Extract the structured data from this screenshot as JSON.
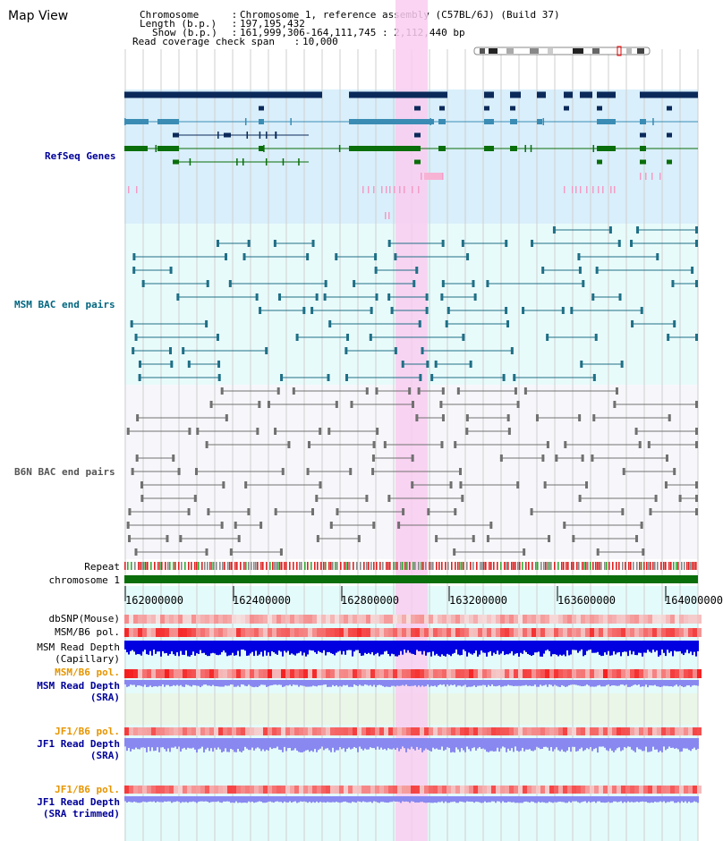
{
  "header": {
    "view_title": "Map View",
    "info_rows": [
      {
        "key": "Chromosome",
        "sep": " : ",
        "value": "Chromosome 1, reference assembly (C57BL/6J) (Build 37)"
      },
      {
        "key": "Length (b.p.)",
        "sep": " : ",
        "value": "197,195,432"
      },
      {
        "key": "Show (b.p.)",
        "sep": " : ",
        "value": "161,999,306-164,111,745 : 2,112,440 bp"
      },
      {
        "key": "Read coverage check span",
        "sep": " : ",
        "value": "10,000"
      }
    ]
  },
  "tracks": {
    "refseq": {
      "label": "RefSeq Genes",
      "color": "#000099"
    },
    "msm_bac": {
      "label": "MSM BAC end pairs",
      "color": "#006680"
    },
    "b6n_bac": {
      "label": "B6N BAC end pairs",
      "color": "#555555"
    },
    "repeat": {
      "label": "Repeat"
    },
    "chromosome": {
      "label": "chromosome 1"
    },
    "dbsnp": {
      "label": "dbSNP(Mouse)"
    },
    "msm_b6_pol_1": {
      "label": "MSM/B6 pol."
    },
    "msm_depth_cap": {
      "label_1": "MSM Read Depth",
      "label_2": "(Capillary)"
    },
    "msm_b6_pol_2": {
      "label": "MSM/B6 pol."
    },
    "msm_depth_sra": {
      "label_1": "MSM Read Depth",
      "label_2": "(SRA)"
    },
    "jf1_b6_pol_1": {
      "label": "JF1/B6 pol."
    },
    "jf1_depth_sra": {
      "label_1": "JF1 Read Depth",
      "label_2": "(SRA)"
    },
    "jf1_b6_pol_2": {
      "label": "JF1/B6 pol."
    },
    "jf1_depth_trim": {
      "label_1": "JF1 Read Depth",
      "label_2": "(SRA trimmed)"
    }
  },
  "axis": {
    "ticks": [
      "162000000",
      "162400000",
      "162800000",
      "163200000",
      "163600000",
      "164000000"
    ]
  },
  "colors": {
    "highlight": "#f9ccf0",
    "refseq_bg": "#d9effb",
    "msm_bg": "#e8fbfb",
    "b6n_bg": "#f7f7fb",
    "gene_dark": "#0b2a5a",
    "gene_mid": "#3a8cb4",
    "gene_green": "#0a6e0a",
    "chromosome_bar": "#0a6e0a",
    "snp_pink": "#f5a0a0",
    "depth_blue": "#0000e0",
    "depth_light": "#8888f0",
    "label_orange": "#e69500",
    "label_navy": "#000099"
  }
}
